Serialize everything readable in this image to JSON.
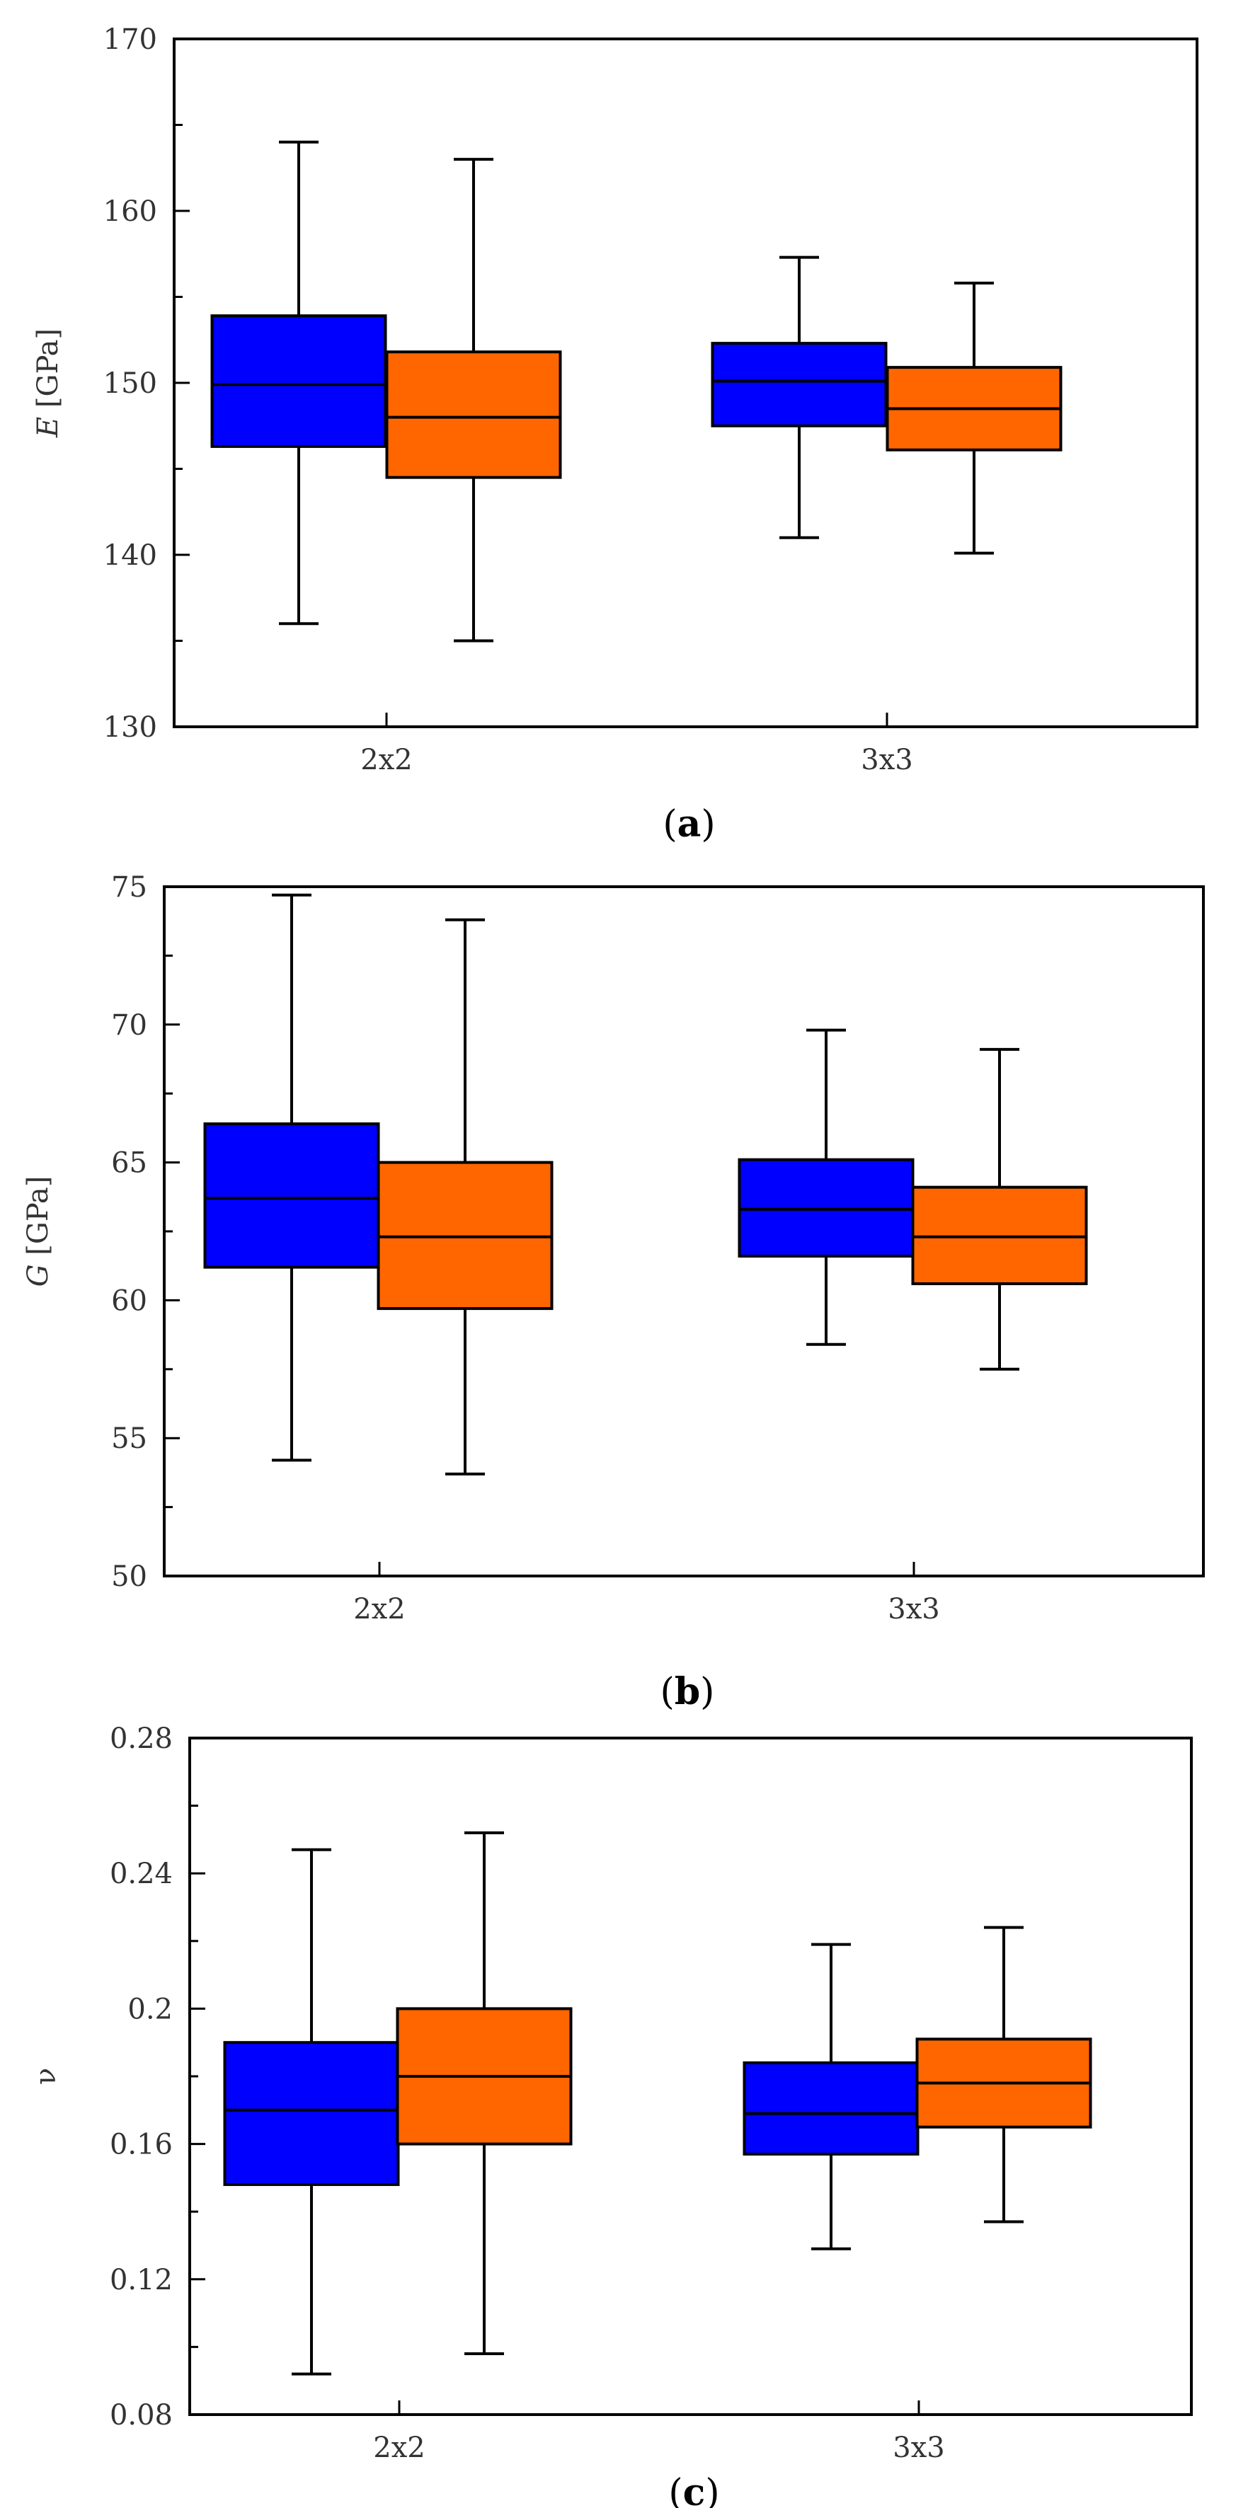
{
  "chart_data": [
    {
      "type": "box",
      "panel": "a",
      "caption": {
        "open": "(",
        "letter": "a",
        "close": ")"
      },
      "ylabel": {
        "symbol": "E",
        "unit": "[GPa]"
      },
      "ylim": [
        130,
        170
      ],
      "yticks": [
        "130",
        "140",
        "150",
        "160",
        "170"
      ],
      "minor_ticks": true,
      "categories": [
        "2x2",
        "3x3"
      ],
      "series": [
        {
          "color": "#0000ff",
          "boxes": [
            {
              "min": 136.0,
              "q1": 146.3,
              "median": 149.9,
              "q3": 153.9,
              "max": 164.0
            },
            {
              "min": 141.0,
              "q1": 147.5,
              "median": 150.1,
              "q3": 152.3,
              "max": 157.3
            }
          ]
        },
        {
          "color": "#ff6600",
          "boxes": [
            {
              "min": 135.0,
              "q1": 144.5,
              "median": 148.0,
              "q3": 151.8,
              "max": 163.0
            },
            {
              "min": 140.1,
              "q1": 146.1,
              "median": 148.5,
              "q3": 150.9,
              "max": 155.8
            }
          ]
        }
      ]
    },
    {
      "type": "box",
      "panel": "b",
      "caption": {
        "open": "(",
        "letter": "b",
        "close": ")"
      },
      "ylabel": {
        "symbol": "G",
        "unit": "[GPa]"
      },
      "ylim": [
        50,
        75
      ],
      "yticks": [
        "50",
        "55",
        "60",
        "65",
        "70",
        "75"
      ],
      "minor_ticks": true,
      "categories": [
        "2x2",
        "3x3"
      ],
      "series": [
        {
          "color": "#0000ff",
          "boxes": [
            {
              "min": 54.2,
              "q1": 61.2,
              "median": 63.7,
              "q3": 66.4,
              "max": 74.7
            },
            {
              "min": 58.4,
              "q1": 61.6,
              "median": 63.3,
              "q3": 65.1,
              "max": 69.8
            }
          ]
        },
        {
          "color": "#ff6600",
          "boxes": [
            {
              "min": 53.7,
              "q1": 59.7,
              "median": 62.3,
              "q3": 65.0,
              "max": 73.8
            },
            {
              "min": 57.5,
              "q1": 60.6,
              "median": 62.3,
              "q3": 64.1,
              "max": 69.1
            }
          ]
        }
      ]
    },
    {
      "type": "box",
      "panel": "c",
      "caption": {
        "open": "(",
        "letter": "c",
        "close": ")"
      },
      "ylabel": {
        "symbol": "ν",
        "unit": ""
      },
      "ylim": [
        0.08,
        0.28
      ],
      "yticks": [
        "0.08",
        "0.12",
        "0.16",
        "0.2",
        "0.24",
        "0.28"
      ],
      "minor_ticks": true,
      "categories": [
        "2x2",
        "3x3"
      ],
      "series": [
        {
          "color": "#0000ff",
          "boxes": [
            {
              "min": 0.092,
              "q1": 0.148,
              "median": 0.17,
              "q3": 0.19,
              "max": 0.247
            },
            {
              "min": 0.129,
              "q1": 0.157,
              "median": 0.169,
              "q3": 0.184,
              "max": 0.219
            }
          ]
        },
        {
          "color": "#ff6600",
          "boxes": [
            {
              "min": 0.098,
              "q1": 0.16,
              "median": 0.18,
              "q3": 0.2,
              "max": 0.252
            },
            {
              "min": 0.137,
              "q1": 0.165,
              "median": 0.178,
              "q3": 0.191,
              "max": 0.224
            }
          ]
        }
      ]
    }
  ]
}
